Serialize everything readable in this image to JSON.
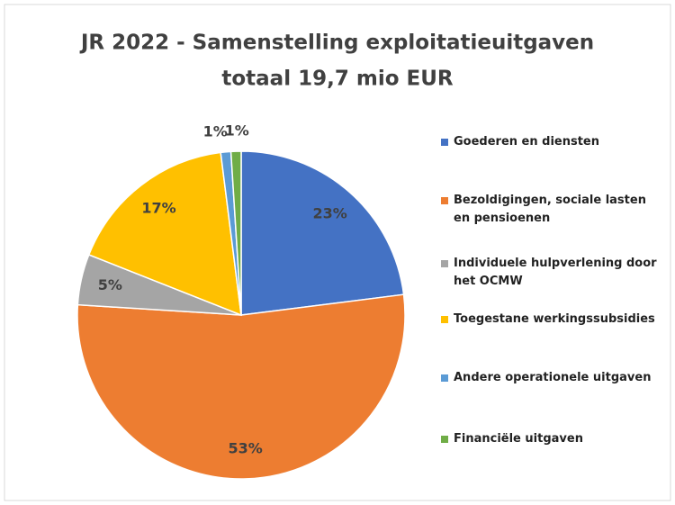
{
  "chart_data": {
    "type": "pie",
    "title": [
      "JR 2022 - Samenstelling exploitatieuitgaven",
      "totaal 19,7 mio EUR"
    ],
    "categories": [
      "Goederen en diensten",
      "Bezoldigingen, sociale lasten en pensioenen",
      "Individuele hulpverlening door het OCMW",
      "Toegestane werkingssubsidies",
      "Andere operationele uitgaven",
      "Financiële uitgaven"
    ],
    "values": [
      23,
      53,
      5,
      17,
      1,
      1
    ],
    "value_labels": [
      "23%",
      "53%",
      "5%",
      "17%",
      "1%",
      "1%"
    ],
    "colors": [
      "#4472c4",
      "#ed7d31",
      "#a5a5a5",
      "#ffc000",
      "#5b9bd5",
      "#70ad47"
    ],
    "legend": "right"
  }
}
